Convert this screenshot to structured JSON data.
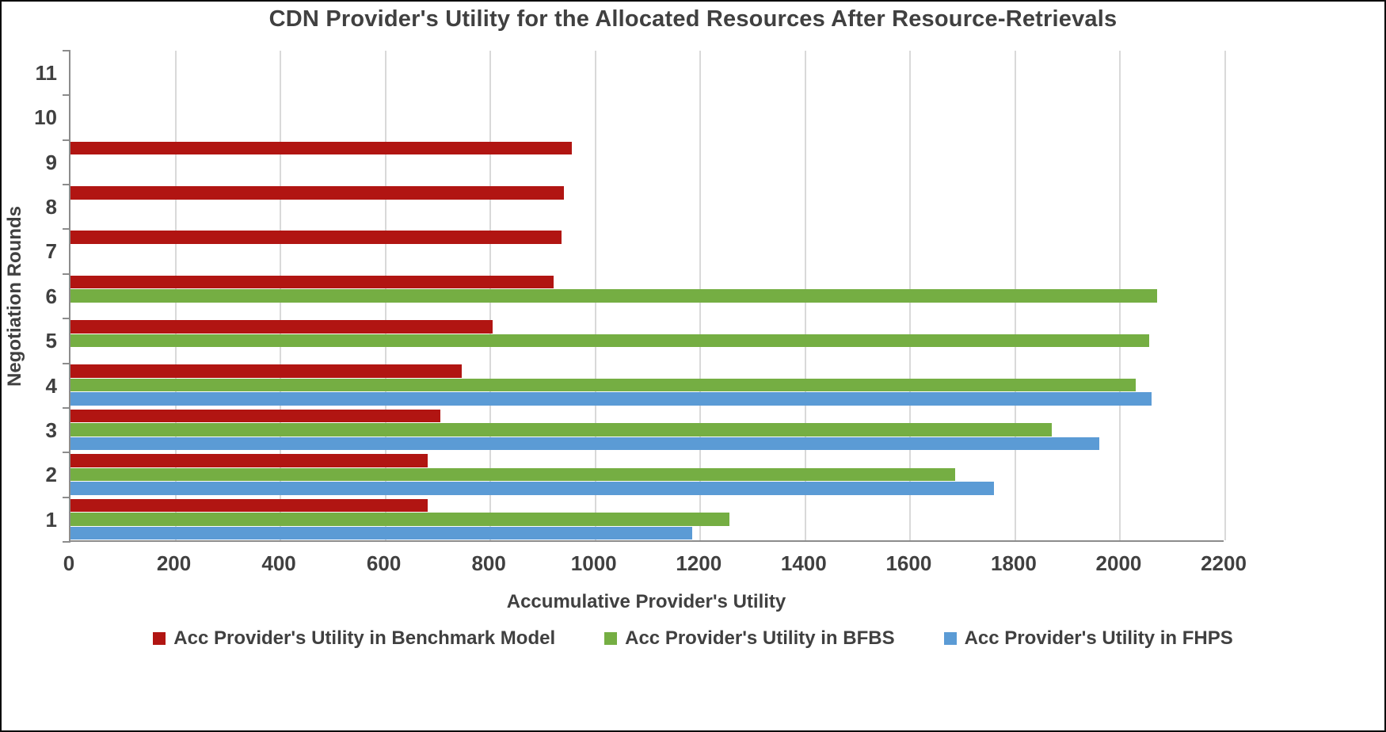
{
  "page": {
    "background": "#ffffff",
    "border_color": "#0b0b0b"
  },
  "chart_data": {
    "type": "bar",
    "orientation": "horizontal",
    "title": "CDN Provider's Utility for the Allocated Resources After Resource-Retrievals",
    "xlabel": "Accumulative Provider's Utility",
    "ylabel": "Negotiation Rounds",
    "categories": [
      "1",
      "2",
      "3",
      "4",
      "5",
      "6",
      "7",
      "8",
      "9",
      "10",
      "11"
    ],
    "xlim": [
      0,
      2200
    ],
    "xticks": [
      0,
      200,
      400,
      600,
      800,
      1000,
      1200,
      1400,
      1600,
      1800,
      2000,
      2200
    ],
    "grid": "vertical",
    "legend_position": "bottom",
    "text_color": "#404040",
    "gridline_color": "#d9d9d9",
    "axis_color": "#8c8c8c",
    "series": [
      {
        "name": "Acc Provider's Utility in Benchmark Model",
        "short": "benchmark",
        "color": "#b11512",
        "values": [
          680,
          680,
          705,
          745,
          805,
          920,
          935,
          940,
          955,
          null,
          null
        ]
      },
      {
        "name": "Acc Provider's Utility in BFBS",
        "short": "bfbs",
        "color": "#75ae43",
        "values": [
          1255,
          1685,
          1870,
          2030,
          2055,
          2070,
          null,
          null,
          null,
          null,
          null
        ]
      },
      {
        "name": "Acc Provider's Utility in FHPS",
        "short": "fhps",
        "color": "#5b9bd5",
        "values": [
          1185,
          1760,
          1960,
          2060,
          null,
          null,
          null,
          null,
          null,
          null,
          null
        ]
      }
    ]
  }
}
